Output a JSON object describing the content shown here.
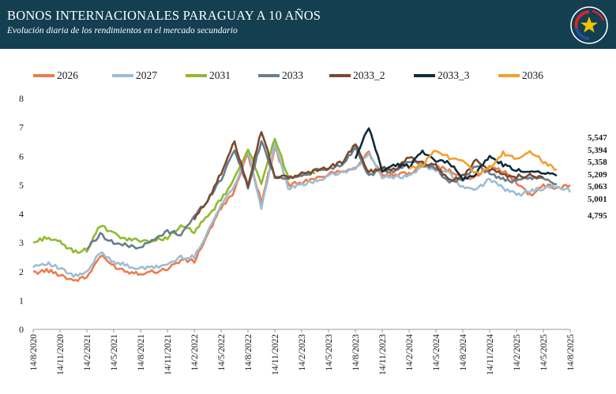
{
  "header": {
    "title": "BONOS INTERNACIONALES PARAGUAY A 10 AÑOS",
    "subtitle": "Evolución diaria de los rendimientos en el mercado secundario"
  },
  "colors": {
    "header_bg": "#133f51",
    "seal_red": "#d22630",
    "seal_blue": "#1f4fa0",
    "seal_star": "#f2c200"
  },
  "icons": {
    "seal": "paraguay-coat-of-arms-icon"
  },
  "chart_data": {
    "type": "line",
    "title": "BONOS INTERNACIONALES PARAGUAY A 10 AÑOS",
    "subtitle": "Evolución diaria de los rendimientos en el mercado secundario",
    "xlabel": "",
    "ylabel": "",
    "ylim": [
      0,
      8
    ],
    "yticks": [
      "0",
      "1",
      "2",
      "3",
      "4",
      "5",
      "6",
      "7",
      "8"
    ],
    "x_tick_labels": [
      "14/8/2020",
      "14/11/2020",
      "14/2/2021",
      "14/5/2021",
      "14/8/2021",
      "14/11/2021",
      "14/2/2022",
      "14/5/2022",
      "14/8/2022",
      "14/11/2022",
      "14/2/2023",
      "14/5/2023",
      "14/8/2023",
      "14/11/2023",
      "14/2/2024",
      "14/5/2024",
      "14/8/2024",
      "14/11/2024",
      "14/2/2025",
      "14/5/2025",
      "14/8/2025"
    ],
    "grid": false,
    "legend_position": "top",
    "series": [
      {
        "name": "2026",
        "color": "#ec7c4e",
        "start": "14/8/2020",
        "values": [
          1.95,
          2.05,
          1.9,
          1.7,
          1.8,
          2.55,
          2.2,
          2.0,
          1.95,
          2.0,
          2.1,
          2.4,
          2.35,
          3.3,
          4.2,
          4.8,
          6.1,
          4.4,
          6.3,
          5.0,
          5.1,
          5.2,
          5.4,
          5.5,
          5.6,
          6.15,
          5.3,
          5.35,
          5.4,
          5.7,
          5.65,
          5.5,
          5.2,
          5.3,
          5.6,
          5.5,
          5.1,
          4.65,
          5.0,
          4.9,
          5.0
        ],
        "last_label": "5,001"
      },
      {
        "name": "2027",
        "color": "#9dbdd3",
        "start": "14/8/2020",
        "values": [
          2.2,
          2.3,
          2.1,
          1.85,
          1.95,
          2.7,
          2.35,
          2.2,
          2.1,
          2.15,
          2.25,
          2.5,
          2.5,
          3.4,
          4.3,
          5.0,
          6.2,
          4.2,
          6.4,
          4.9,
          5.0,
          5.15,
          5.3,
          5.45,
          5.55,
          6.1,
          5.25,
          5.3,
          5.3,
          5.65,
          5.55,
          5.4,
          4.9,
          4.85,
          5.2,
          4.9,
          4.65,
          4.8,
          4.9,
          4.95,
          4.8
        ],
        "last_label": "4,795"
      },
      {
        "name": "2031",
        "color": "#8fba2e",
        "start": "14/8/2020",
        "values": [
          3.0,
          3.2,
          3.0,
          2.7,
          2.75,
          3.6,
          3.3,
          3.1,
          3.1,
          3.05,
          3.2,
          3.55,
          3.4,
          3.9,
          4.5,
          5.2,
          6.3,
          5.0,
          6.6,
          5.3,
          5.3,
          5.4
        ],
        "last_label": ""
      },
      {
        "name": "2033",
        "color": "#687d8c",
        "start": "14/2/2021",
        "values": [
          2.8,
          3.3,
          3.0,
          2.9,
          2.85,
          3.1,
          3.4,
          3.3,
          3.9,
          4.5,
          5.2,
          6.25,
          4.9,
          6.5,
          5.3,
          5.25,
          5.3,
          5.5,
          5.55,
          5.7,
          6.3,
          5.35,
          5.5,
          5.45,
          5.85,
          5.7,
          5.6,
          5.05,
          5.2,
          5.7,
          5.4,
          5.2,
          5.1,
          5.25,
          5.2,
          5.06
        ],
        "last_label": "5,063"
      },
      {
        "name": "2033_2",
        "color": "#7b4a2e",
        "start": "14/2/2022",
        "values": [
          3.8,
          4.5,
          5.4,
          6.5,
          5.0,
          6.9,
          5.3,
          5.25,
          5.4,
          5.5,
          5.6,
          5.8,
          6.4,
          5.45,
          5.6,
          5.55,
          6.0,
          5.75,
          5.7,
          5.15,
          5.3,
          5.9,
          5.55,
          5.35,
          5.3,
          5.35,
          5.21
        ],
        "last_label": "5,209"
      },
      {
        "name": "2033_3",
        "color": "#0e2d3e",
        "start": "14/8/2023",
        "values": [
          5.9,
          7.0,
          5.5,
          5.7,
          5.65,
          6.2,
          5.8,
          5.8,
          5.2,
          5.4,
          6.0,
          5.7,
          5.5,
          5.5,
          5.45,
          5.36
        ],
        "last_label": "5,358"
      },
      {
        "name": "2036",
        "color": "#f2a12e",
        "start": "14/2/2024",
        "values": [
          5.6,
          5.7,
          6.25,
          5.95,
          5.9,
          5.4,
          5.55,
          6.1,
          5.9,
          6.2,
          5.8,
          5.55
        ],
        "last_label": "5,547"
      }
    ],
    "extra_end_labels": [
      "5,394"
    ]
  }
}
